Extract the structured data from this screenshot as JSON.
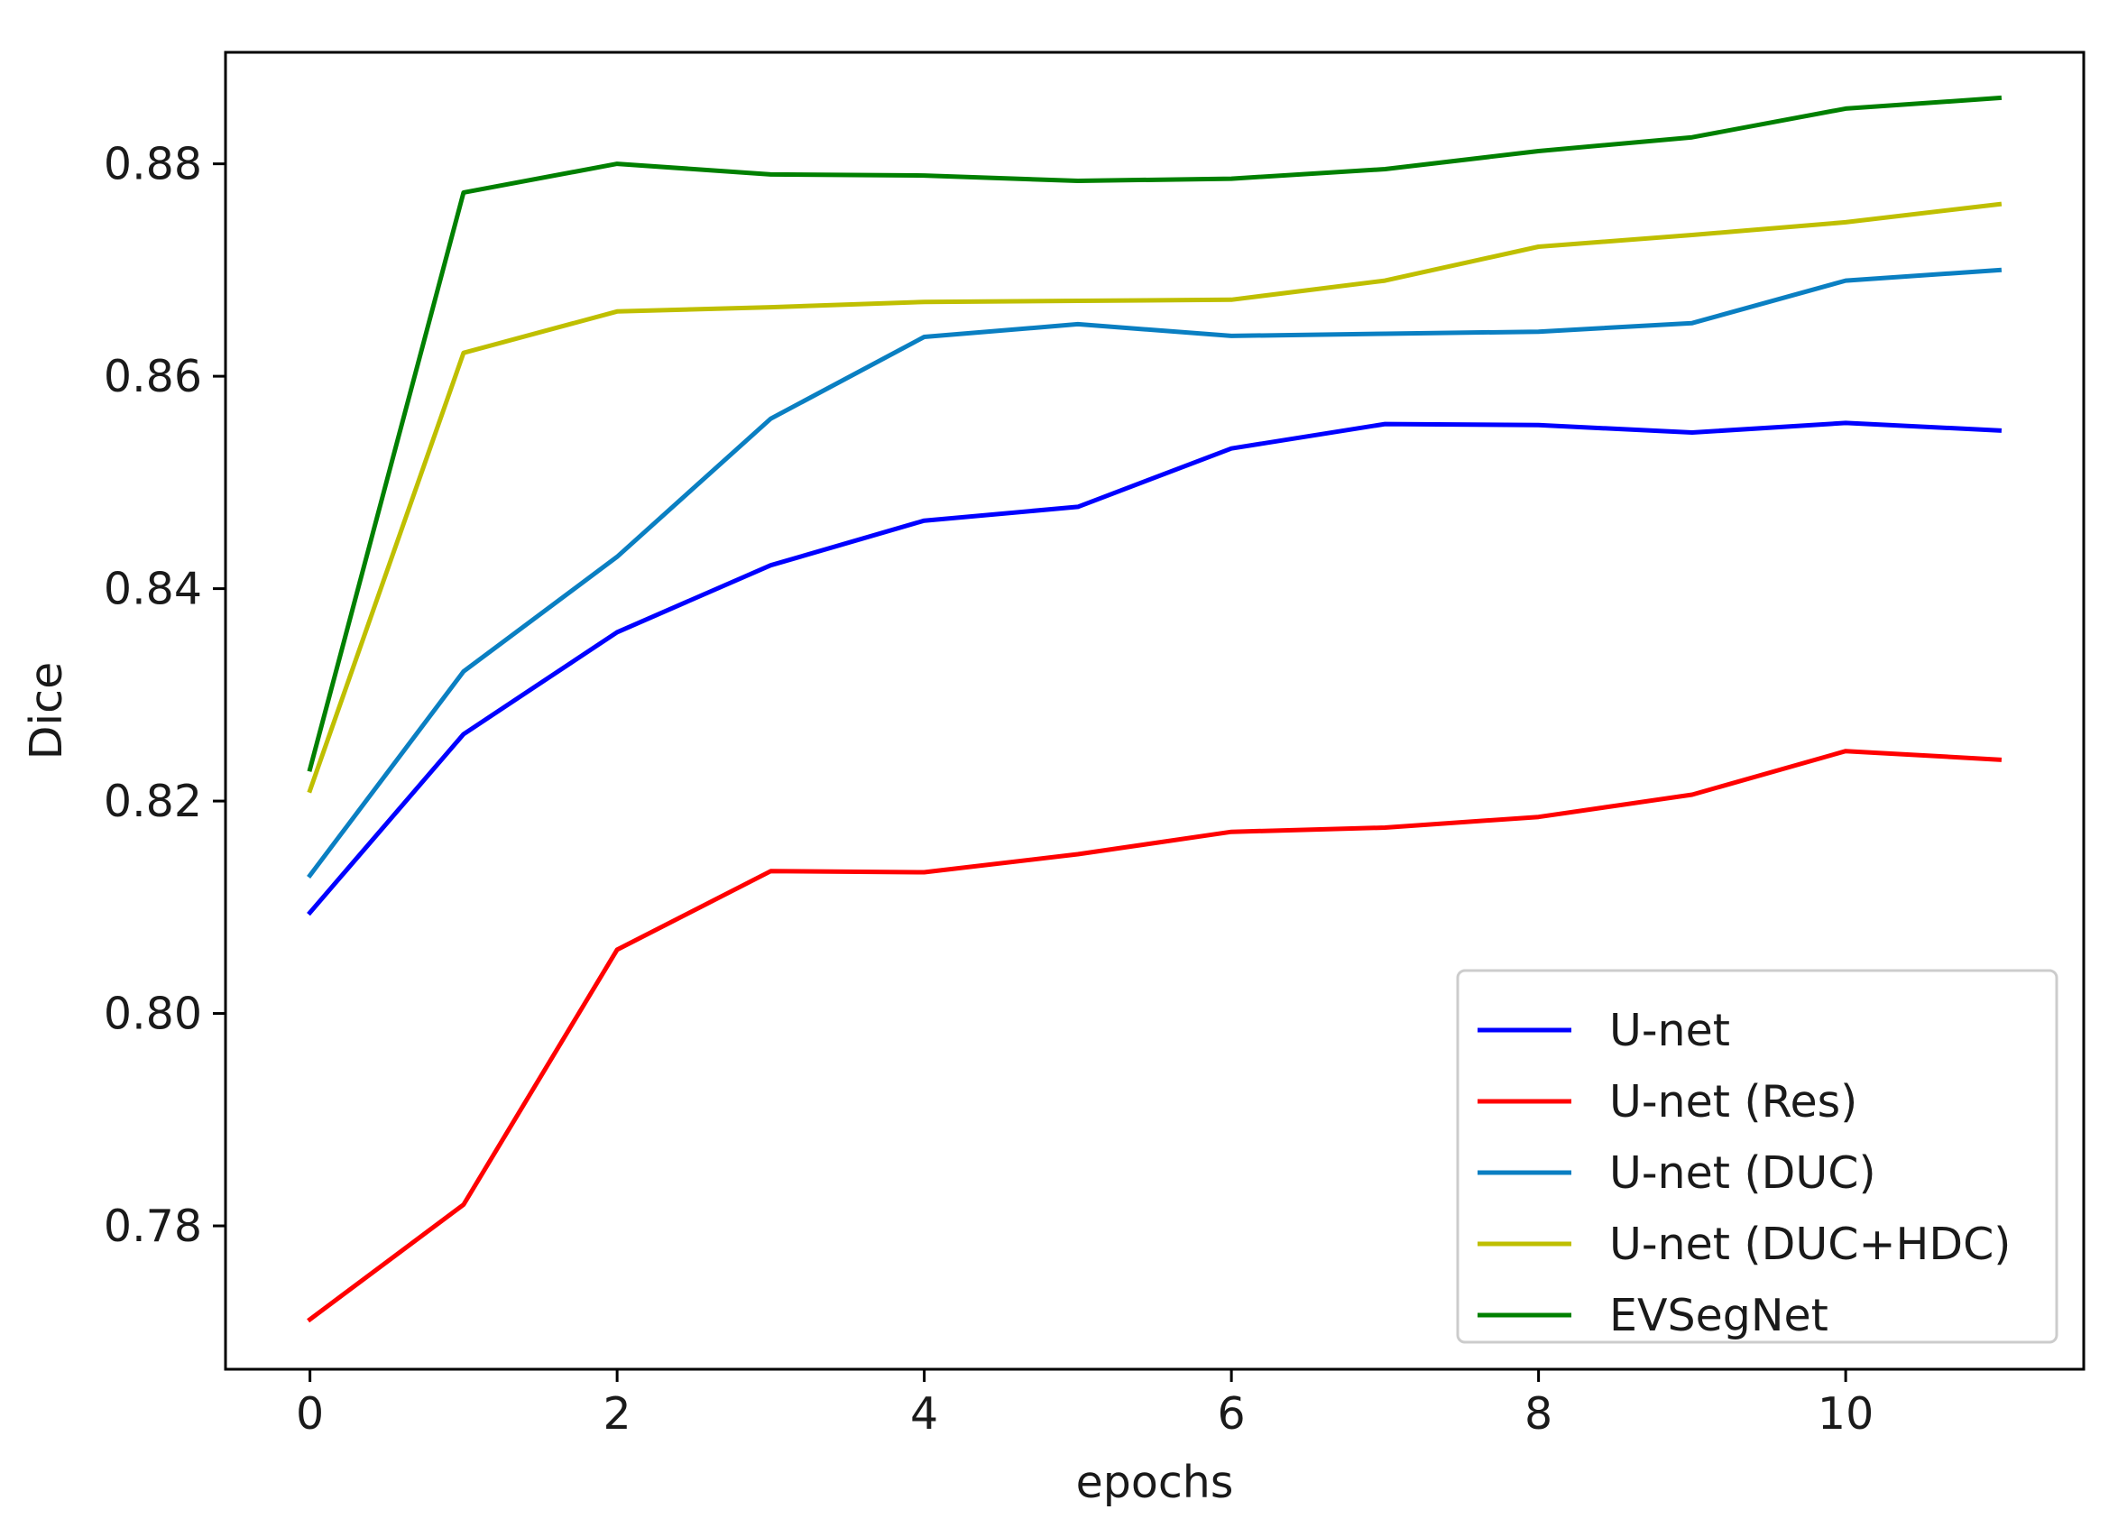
{
  "chart_data": {
    "type": "line",
    "title": "",
    "xlabel": "epochs",
    "ylabel": "Dice",
    "xlim": [
      -0.55,
      11.55
    ],
    "ylim": [
      0.7665,
      0.8905
    ],
    "x_ticks": [
      0,
      2,
      4,
      6,
      8,
      10
    ],
    "x_tick_labels": [
      "0",
      "2",
      "4",
      "6",
      "8",
      "10"
    ],
    "y_ticks": [
      0.78,
      0.8,
      0.82,
      0.84,
      0.86,
      0.88
    ],
    "y_tick_labels": [
      "0.78",
      "0.80",
      "0.82",
      "0.84",
      "0.86",
      "0.88"
    ],
    "grid": false,
    "legend_position": "bottom-right",
    "x": [
      0,
      1,
      2,
      3,
      4,
      5,
      6,
      7,
      8,
      9,
      10,
      11
    ],
    "series": [
      {
        "name": "U-net",
        "color": "#0000ff",
        "values": [
          0.8095,
          0.8263,
          0.8359,
          0.8422,
          0.8464,
          0.8477,
          0.8532,
          0.8555,
          0.8554,
          0.8547,
          0.8556,
          0.8549
        ]
      },
      {
        "name": "U-net (Res)",
        "color": "#ff0000",
        "values": [
          0.7712,
          0.782,
          0.806,
          0.8134,
          0.8133,
          0.815,
          0.8171,
          0.8175,
          0.8185,
          0.8206,
          0.8247,
          0.8239
        ]
      },
      {
        "name": "U-net (DUC)",
        "color": "#0a7fc2",
        "values": [
          0.813,
          0.8322,
          0.843,
          0.856,
          0.8637,
          0.8649,
          0.8638,
          0.864,
          0.8642,
          0.865,
          0.869,
          0.87
        ]
      },
      {
        "name": "U-net (DUC+HDC)",
        "color": "#bfbf00",
        "values": [
          0.821,
          0.8622,
          0.8661,
          0.8665,
          0.867,
          0.8671,
          0.8672,
          0.869,
          0.8722,
          0.8733,
          0.8745,
          0.8762
        ]
      },
      {
        "name": "EVSegNet",
        "color": "#008000",
        "values": [
          0.823,
          0.8773,
          0.88,
          0.879,
          0.8789,
          0.8784,
          0.8786,
          0.8795,
          0.8812,
          0.8825,
          0.8852,
          0.8862
        ]
      }
    ]
  }
}
